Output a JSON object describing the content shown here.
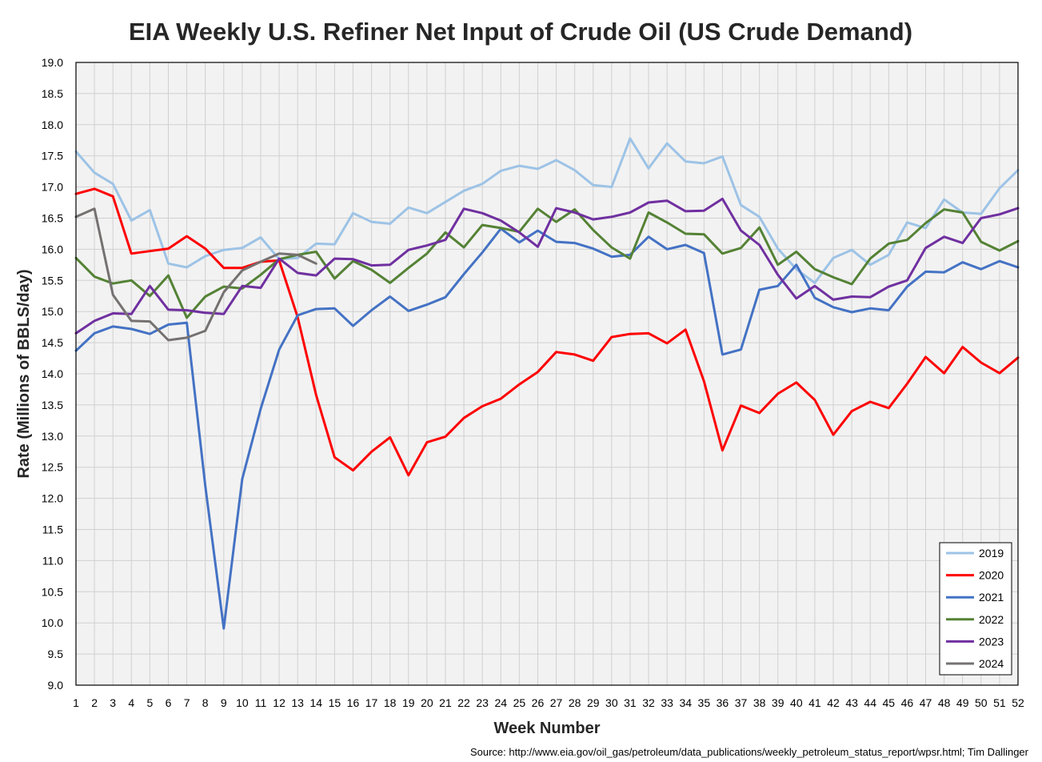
{
  "chart_data": {
    "type": "line",
    "title": "EIA Weekly U.S. Refiner Net Input of Crude Oil (US Crude Demand)",
    "xlabel": "Week Number",
    "ylabel": "Rate (Millions of BBLS/day)",
    "source": "Source: http://www.eia.gov/oil_gas/petroleum/data_publications/weekly_petroleum_status_report/wpsr.html; Tim Dallinger",
    "xlim": [
      1,
      52
    ],
    "ylim": [
      9.0,
      19.0
    ],
    "ytick_step": 0.5,
    "grid": true,
    "legend_position": "bottom-right",
    "x": [
      1,
      2,
      3,
      4,
      5,
      6,
      7,
      8,
      9,
      10,
      11,
      12,
      13,
      14,
      15,
      16,
      17,
      18,
      19,
      20,
      21,
      22,
      23,
      24,
      25,
      26,
      27,
      28,
      29,
      30,
      31,
      32,
      33,
      34,
      35,
      36,
      37,
      38,
      39,
      40,
      41,
      42,
      43,
      44,
      45,
      46,
      47,
      48,
      49,
      50,
      51,
      52
    ],
    "series": [
      {
        "name": "2019",
        "color": "#9DC3E6",
        "values": [
          17.57,
          17.23,
          17.05,
          16.46,
          16.63,
          15.77,
          15.71,
          15.89,
          15.99,
          16.02,
          16.19,
          15.84,
          15.86,
          16.09,
          16.08,
          16.58,
          16.44,
          16.41,
          16.67,
          16.58,
          16.76,
          16.94,
          17.05,
          17.26,
          17.34,
          17.29,
          17.43,
          17.27,
          17.03,
          17.0,
          17.78,
          17.3,
          17.7,
          17.41,
          17.38,
          17.49,
          16.71,
          16.52,
          16.01,
          15.68,
          15.46,
          15.86,
          15.99,
          15.75,
          15.91,
          16.43,
          16.34,
          16.8,
          16.59,
          16.57,
          16.98,
          17.27
        ]
      },
      {
        "name": "2020",
        "color": "#FF0000",
        "values": [
          16.89,
          16.97,
          16.85,
          15.93,
          15.97,
          16.01,
          16.21,
          16.01,
          15.7,
          15.7,
          15.8,
          15.82,
          14.91,
          13.66,
          12.66,
          12.45,
          12.75,
          12.98,
          12.37,
          12.9,
          12.99,
          13.29,
          13.48,
          13.6,
          13.83,
          14.03,
          14.35,
          14.31,
          14.21,
          14.59,
          14.64,
          14.65,
          14.49,
          14.71,
          13.88,
          12.77,
          13.49,
          13.37,
          13.68,
          13.86,
          13.58,
          13.02,
          13.4,
          13.55,
          13.45,
          13.84,
          14.27,
          14.01,
          14.43,
          14.18,
          14.01,
          14.26
        ]
      },
      {
        "name": "2021",
        "color": "#4472C4",
        "values": [
          14.37,
          14.65,
          14.76,
          14.72,
          14.64,
          14.79,
          14.82,
          12.2,
          9.91,
          12.31,
          13.44,
          14.39,
          14.94,
          15.04,
          15.05,
          14.77,
          15.02,
          15.24,
          15.01,
          15.11,
          15.23,
          15.6,
          15.95,
          16.33,
          16.11,
          16.3,
          16.12,
          16.1,
          16.01,
          15.88,
          15.91,
          16.2,
          16.0,
          16.07,
          15.94,
          14.31,
          14.39,
          15.35,
          15.41,
          15.75,
          15.22,
          15.07,
          14.99,
          15.05,
          15.02,
          15.4,
          15.64,
          15.63,
          15.79,
          15.68,
          15.81,
          15.71
        ]
      },
      {
        "name": "2022",
        "color": "#548235",
        "values": [
          15.86,
          15.56,
          15.45,
          15.5,
          15.25,
          15.58,
          14.9,
          15.24,
          15.4,
          15.37,
          15.59,
          15.84,
          15.91,
          15.96,
          15.53,
          15.81,
          15.67,
          15.46,
          15.7,
          15.93,
          16.27,
          16.03,
          16.39,
          16.34,
          16.28,
          16.65,
          16.44,
          16.64,
          16.31,
          16.03,
          15.85,
          16.59,
          16.43,
          16.25,
          16.24,
          15.93,
          16.02,
          16.35,
          15.75,
          15.96,
          15.68,
          15.55,
          15.44,
          15.85,
          16.09,
          16.15,
          16.42,
          16.64,
          16.59,
          16.12,
          15.98,
          16.13
        ]
      },
      {
        "name": "2023",
        "color": "#7030A0",
        "values": [
          14.65,
          14.85,
          14.97,
          14.96,
          15.41,
          15.03,
          15.02,
          14.98,
          14.96,
          15.41,
          15.38,
          15.85,
          15.62,
          15.58,
          15.85,
          15.84,
          15.74,
          15.75,
          15.99,
          16.06,
          16.15,
          16.65,
          16.58,
          16.46,
          16.27,
          16.04,
          16.66,
          16.59,
          16.48,
          16.52,
          16.59,
          16.75,
          16.78,
          16.61,
          16.62,
          16.81,
          16.3,
          16.07,
          15.59,
          15.21,
          15.41,
          15.19,
          15.24,
          15.23,
          15.4,
          15.5,
          16.02,
          16.2,
          16.1,
          16.5,
          16.56,
          16.66
        ]
      },
      {
        "name": "2024",
        "color": "#767171",
        "values": [
          16.52,
          16.65,
          15.27,
          14.85,
          14.84,
          14.54,
          14.58,
          14.69,
          15.31,
          15.66,
          15.8,
          15.93,
          15.91,
          15.77,
          null,
          null,
          null,
          null,
          null,
          null,
          null,
          null,
          null,
          null,
          null,
          null,
          null,
          null,
          null,
          null,
          null,
          null,
          null,
          null,
          null,
          null,
          null,
          null,
          null,
          null,
          null,
          null,
          null,
          null,
          null,
          null,
          null,
          null,
          null,
          null,
          null,
          null
        ]
      }
    ]
  }
}
